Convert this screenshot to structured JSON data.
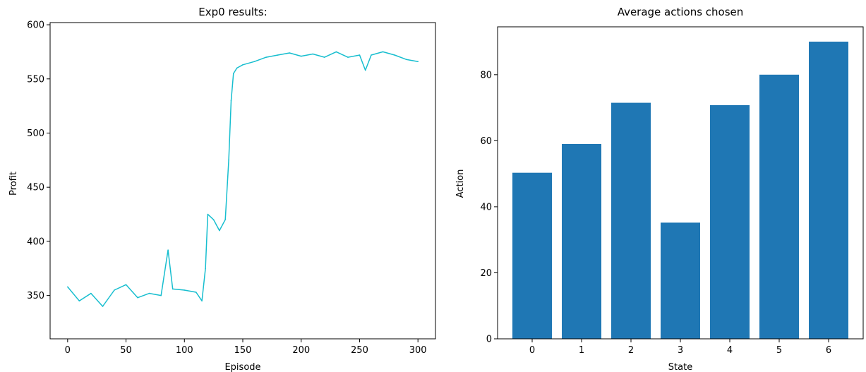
{
  "chart_data": [
    {
      "type": "line",
      "title": "Exp0 results:",
      "xlabel": "Episode",
      "ylabel": "Profit",
      "xlim": [
        -15,
        315
      ],
      "ylim": [
        310,
        602
      ],
      "xticks": [
        0,
        50,
        100,
        150,
        200,
        250,
        300
      ],
      "yticks": [
        350,
        400,
        450,
        500,
        550,
        600
      ],
      "grid": false,
      "series": [
        {
          "color": "#17becf",
          "x": [
            0,
            10,
            20,
            30,
            40,
            50,
            60,
            70,
            80,
            86,
            90,
            100,
            110,
            115,
            118,
            120,
            125,
            130,
            135,
            138,
            140,
            142,
            145,
            150,
            160,
            170,
            180,
            190,
            200,
            210,
            220,
            230,
            240,
            250,
            255,
            260,
            270,
            280,
            290,
            300
          ],
          "y": [
            358,
            345,
            352,
            340,
            355,
            360,
            348,
            352,
            350,
            392,
            356,
            355,
            353,
            345,
            375,
            425,
            420,
            410,
            420,
            475,
            530,
            555,
            560,
            563,
            566,
            570,
            572,
            574,
            571,
            573,
            570,
            575,
            570,
            572,
            558,
            572,
            575,
            572,
            568,
            566
          ]
        }
      ]
    },
    {
      "type": "bar",
      "title": "Average actions chosen",
      "xlabel": "State",
      "ylabel": "Action",
      "categories": [
        "0",
        "1",
        "2",
        "3",
        "4",
        "5",
        "6"
      ],
      "values": [
        50.3,
        59.0,
        71.5,
        35.2,
        70.8,
        80.0,
        90.0
      ],
      "ylim": [
        0,
        94.5
      ],
      "yticks": [
        0,
        20,
        40,
        60,
        80
      ],
      "color": "#1f77b4",
      "grid": false
    }
  ]
}
